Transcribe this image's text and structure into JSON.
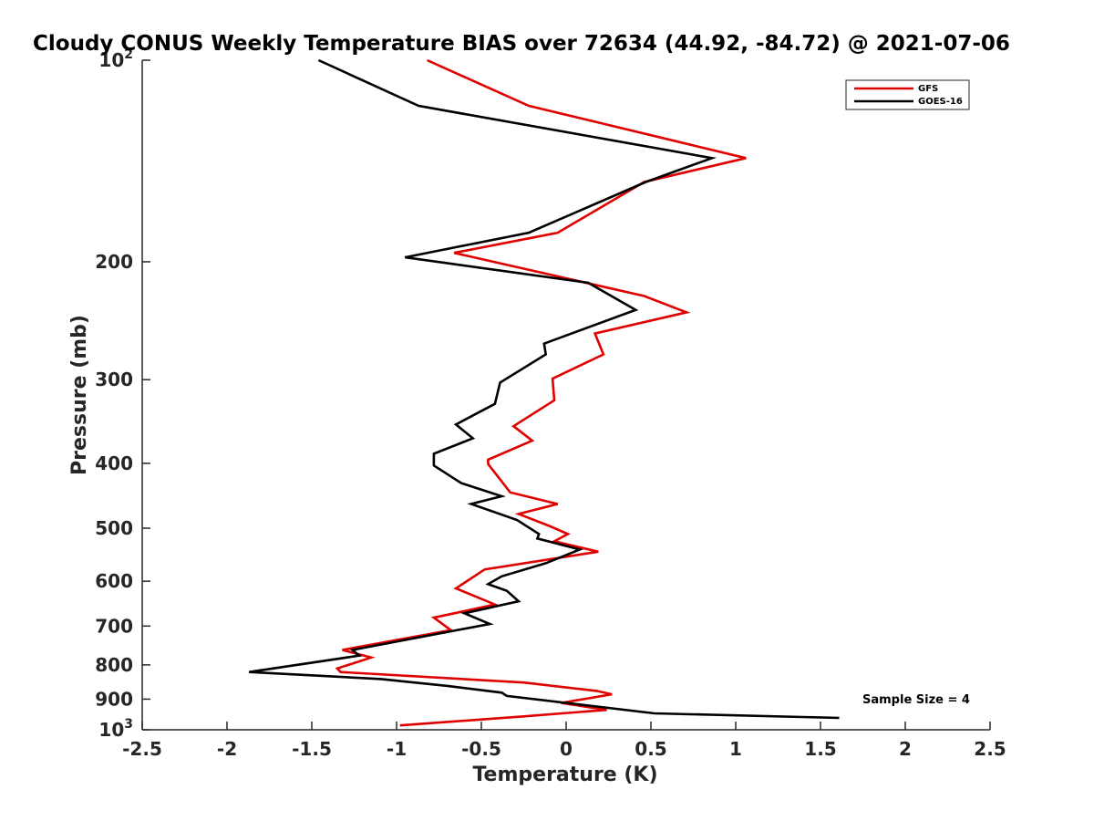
{
  "chart_data": {
    "type": "line",
    "title": "Cloudy CONUS Weekly Temperature BIAS over 72634 (44.92, -84.72) @ 2021-07-06",
    "xlabel": "Temperature (K)",
    "ylabel": "Pressure (mb)",
    "xlim": [
      -2.5,
      2.5
    ],
    "ylim": [
      100,
      1000
    ],
    "y_scale": "log",
    "y_reversed": true,
    "grid": false,
    "x_ticks": [
      -2.5,
      -2,
      -1.5,
      -1,
      -0.5,
      0,
      0.5,
      1,
      1.5,
      2,
      2.5
    ],
    "x_tick_labels": [
      "-2.5",
      "-2",
      "-1.5",
      "-1",
      "-0.5",
      "0",
      "0.5",
      "1",
      "1.5",
      "2",
      "2.5"
    ],
    "y_ticks": [
      100,
      200,
      300,
      400,
      500,
      600,
      700,
      800,
      900,
      1000
    ],
    "y_tick_labels": [
      {
        "base": "10",
        "exp": "2"
      },
      {
        "base": "200",
        "exp": ""
      },
      {
        "base": "300",
        "exp": ""
      },
      {
        "base": "400",
        "exp": ""
      },
      {
        "base": "500",
        "exp": ""
      },
      {
        "base": "600",
        "exp": ""
      },
      {
        "base": "700",
        "exp": ""
      },
      {
        "base": "800",
        "exp": ""
      },
      {
        "base": "900",
        "exp": ""
      },
      {
        "base": "10",
        "exp": "3"
      }
    ],
    "legend_position": "top-right",
    "series": [
      {
        "name": "GFS",
        "color": "#e00000",
        "x": [
          -0.82,
          -0.22,
          1.06,
          0.46,
          -0.05,
          -0.66,
          0.46,
          0.71,
          0.17,
          0.22,
          -0.08,
          -0.07,
          -0.31,
          -0.2,
          -0.46,
          -0.46,
          -0.33,
          -0.05,
          -0.28,
          -0.1,
          0.01,
          -0.07,
          0.19,
          -0.48,
          -0.65,
          -0.42,
          -0.78,
          -0.68,
          -1.32,
          -1.15,
          -1.35,
          -1.33,
          -0.25,
          0.18,
          0.27,
          -0.03,
          0.24,
          -0.25,
          -0.98
        ],
        "y": [
          100,
          117,
          140,
          152,
          181,
          194,
          225,
          238,
          256,
          275,
          299,
          322,
          352,
          370,
          395,
          401,
          442,
          460,
          476,
          496,
          510,
          523,
          542,
          576,
          615,
          650,
          680,
          710,
          760,
          780,
          810,
          820,
          850,
          875,
          885,
          912,
          934,
          955,
          985
        ]
      },
      {
        "name": "GOES-16",
        "color": "#000000",
        "x": [
          -1.46,
          -0.87,
          0.86,
          0.47,
          -0.22,
          -0.95,
          0.13,
          0.41,
          -0.13,
          -0.12,
          -0.39,
          -0.42,
          -0.65,
          -0.55,
          -0.78,
          -0.78,
          -0.62,
          -0.38,
          -0.56,
          -0.29,
          -0.16,
          -0.17,
          0.08,
          -0.12,
          -0.38,
          -0.46,
          -0.35,
          -0.28,
          -0.6,
          -0.45,
          -1.26,
          -1.22,
          -1.87,
          -1.09,
          -0.7,
          -0.38,
          -0.35,
          0.52,
          1.61
        ],
        "y": [
          100,
          117,
          140,
          152,
          181,
          197,
          215,
          236,
          265,
          275,
          303,
          326,
          350,
          367,
          387,
          403,
          428,
          448,
          460,
          486,
          510,
          518,
          538,
          564,
          590,
          606,
          620,
          643,
          670,
          695,
          760,
          775,
          820,
          840,
          860,
          880,
          890,
          945,
          960
        ]
      }
    ],
    "annotation": "Sample Size = 4"
  }
}
